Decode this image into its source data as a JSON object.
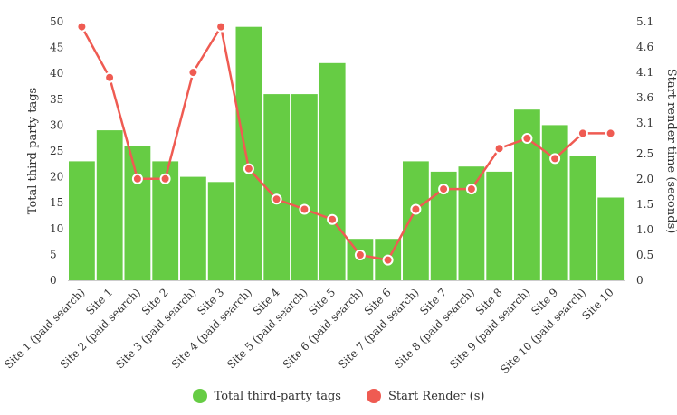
{
  "chart_data": {
    "type": "bar",
    "categories": [
      "Site 1 (paid search)",
      "Site 1",
      "Site 2 (paid search)",
      "Site 2",
      "Site 3 (paid search)",
      "Site 3",
      "Site 4 (paid search)",
      "Site 4",
      "Site 5 (paid search)",
      "Site 5",
      "Site 6 (paid search)",
      "Site 6",
      "Site 7 (paid search)",
      "Site 7",
      "Site 8 (paid search)",
      "Site 8",
      "Site 9 (paid search)",
      "Site 9",
      "Site 10 (paid search)",
      "Site 10"
    ],
    "series": [
      {
        "name": "Total third-party tags",
        "type": "bar",
        "axis": "left",
        "color": "#66cc44",
        "values": [
          23,
          29,
          26,
          23,
          20,
          19,
          49,
          36,
          36,
          42,
          8,
          8,
          23,
          21,
          22,
          21,
          33,
          30,
          24,
          16
        ]
      },
      {
        "name": "Start Render (s)",
        "type": "line",
        "axis": "right",
        "color": "#ef5b52",
        "values": [
          5.0,
          4.0,
          2.0,
          2.0,
          4.1,
          5.0,
          2.2,
          1.6,
          1.4,
          1.2,
          0.5,
          0.4,
          1.4,
          1.8,
          1.8,
          2.6,
          2.8,
          2.4,
          2.9,
          2.9
        ]
      }
    ],
    "ylabel": "Total third-party tags",
    "ylim": [
      0,
      50
    ],
    "yticks": [
      0,
      5,
      10,
      15,
      20,
      25,
      30,
      35,
      40,
      45,
      50
    ],
    "y2label": "Start render time (seconds)",
    "y2lim": [
      0,
      5.1
    ],
    "y2ticks": [
      "0",
      "0.5",
      "1.0",
      "1.5",
      "2.0",
      "2.5",
      "3.1",
      "3.6",
      "4.1",
      "4.6",
      "5.1"
    ],
    "grid": false,
    "legend_position": "bottom"
  },
  "legend": {
    "items": [
      {
        "label": "Total third-party tags",
        "color": "#66cc44"
      },
      {
        "label": "Start Render (s)",
        "color": "#ef5b52"
      }
    ]
  }
}
